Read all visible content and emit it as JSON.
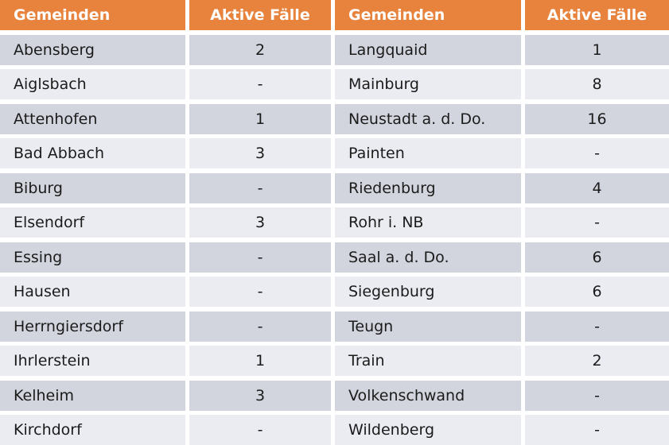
{
  "table": {
    "header": {
      "col1": "Gemeinden",
      "col2": "Aktive Fälle",
      "col3": "Gemeinden",
      "col4": "Aktive Fälle"
    },
    "rows": [
      {
        "g1": "Abensberg",
        "v1": "2",
        "g2": "Langquaid",
        "v2": "1"
      },
      {
        "g1": "Aiglsbach",
        "v1": "-",
        "g2": "Mainburg",
        "v2": "8"
      },
      {
        "g1": "Attenhofen",
        "v1": "1",
        "g2": "Neustadt a. d. Do.",
        "v2": "16"
      },
      {
        "g1": "Bad Abbach",
        "v1": "3",
        "g2": "Painten",
        "v2": "-"
      },
      {
        "g1": "Biburg",
        "v1": "-",
        "g2": "Riedenburg",
        "v2": "4"
      },
      {
        "g1": "Elsendorf",
        "v1": "3",
        "g2": "Rohr i. NB",
        "v2": "-"
      },
      {
        "g1": "Essing",
        "v1": "-",
        "g2": "Saal a. d. Do.",
        "v2": "6"
      },
      {
        "g1": "Hausen",
        "v1": "-",
        "g2": "Siegenburg",
        "v2": "6"
      },
      {
        "g1": "Herrngiersdorf",
        "v1": "-",
        "g2": "Teugn",
        "v2": "-"
      },
      {
        "g1": "Ihrlerstein",
        "v1": "1",
        "g2": "Train",
        "v2": "2"
      },
      {
        "g1": "Kelheim",
        "v1": "3",
        "g2": "Volkenschwand",
        "v2": "-"
      },
      {
        "g1": "Kirchdorf",
        "v1": "-",
        "g2": "Wildenberg",
        "v2": "-"
      }
    ]
  },
  "colors": {
    "header_bg": "#e8833d",
    "header_text": "#ffffff",
    "row_dark": "#d2d5dd",
    "row_light": "#ebecf2",
    "body_text": "#1b1b1b",
    "gap": "#ffffff"
  },
  "chart_data": {
    "type": "table",
    "title": "",
    "columns": [
      "Gemeinden",
      "Aktive Fälle",
      "Gemeinden",
      "Aktive Fälle"
    ],
    "records": [
      {
        "gemeinde": "Abensberg",
        "aktive_faelle": 2
      },
      {
        "gemeinde": "Aiglsbach",
        "aktive_faelle": null
      },
      {
        "gemeinde": "Attenhofen",
        "aktive_faelle": 1
      },
      {
        "gemeinde": "Bad Abbach",
        "aktive_faelle": 3
      },
      {
        "gemeinde": "Biburg",
        "aktive_faelle": null
      },
      {
        "gemeinde": "Elsendorf",
        "aktive_faelle": 3
      },
      {
        "gemeinde": "Essing",
        "aktive_faelle": null
      },
      {
        "gemeinde": "Hausen",
        "aktive_faelle": null
      },
      {
        "gemeinde": "Herrngiersdorf",
        "aktive_faelle": null
      },
      {
        "gemeinde": "Ihrlerstein",
        "aktive_faelle": 1
      },
      {
        "gemeinde": "Kelheim",
        "aktive_faelle": 3
      },
      {
        "gemeinde": "Kirchdorf",
        "aktive_faelle": null
      },
      {
        "gemeinde": "Langquaid",
        "aktive_faelle": 1
      },
      {
        "gemeinde": "Mainburg",
        "aktive_faelle": 8
      },
      {
        "gemeinde": "Neustadt a. d. Do.",
        "aktive_faelle": 16
      },
      {
        "gemeinde": "Painten",
        "aktive_faelle": null
      },
      {
        "gemeinde": "Riedenburg",
        "aktive_faelle": 4
      },
      {
        "gemeinde": "Rohr i. NB",
        "aktive_faelle": null
      },
      {
        "gemeinde": "Saal a. d. Do.",
        "aktive_faelle": 6
      },
      {
        "gemeinde": "Siegenburg",
        "aktive_faelle": 6
      },
      {
        "gemeinde": "Teugn",
        "aktive_faelle": null
      },
      {
        "gemeinde": "Train",
        "aktive_faelle": 2
      },
      {
        "gemeinde": "Volkenschwand",
        "aktive_faelle": null
      },
      {
        "gemeinde": "Wildenberg",
        "aktive_faelle": null
      }
    ],
    "layout_hints": {
      "null_rendered_as": "-",
      "two_column_pairs": true,
      "striped_rows": true
    }
  }
}
